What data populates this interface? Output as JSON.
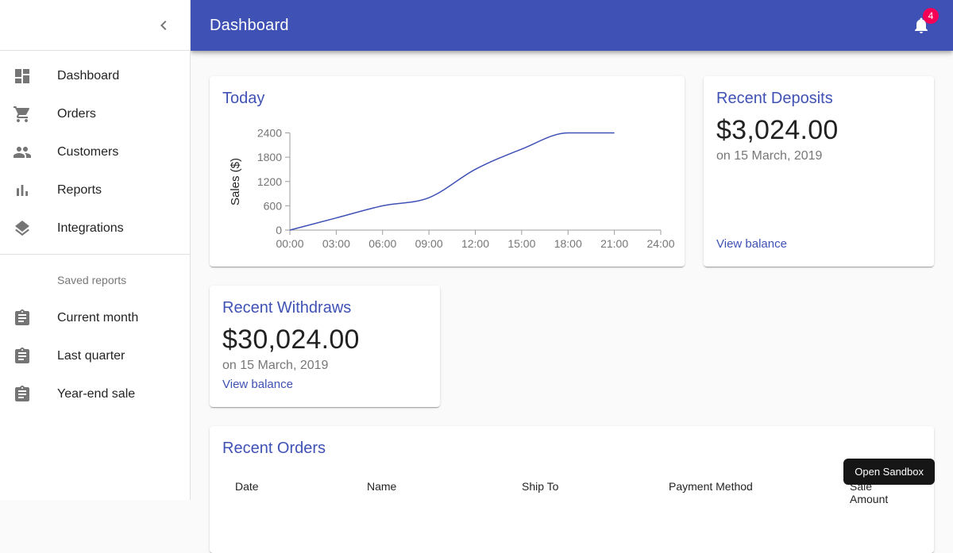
{
  "app_bar": {
    "title": "Dashboard",
    "notifications_badge": "4"
  },
  "sidebar": {
    "main_items": [
      {
        "label": "Dashboard",
        "icon": "dashboard-icon"
      },
      {
        "label": "Orders",
        "icon": "shopping-cart-icon"
      },
      {
        "label": "Customers",
        "icon": "people-icon"
      },
      {
        "label": "Reports",
        "icon": "bar-chart-icon"
      },
      {
        "label": "Integrations",
        "icon": "layers-icon"
      }
    ],
    "subheader": "Saved reports",
    "saved_items": [
      {
        "label": "Current month",
        "icon": "assignment-icon"
      },
      {
        "label": "Last quarter",
        "icon": "assignment-icon"
      },
      {
        "label": "Year-end sale",
        "icon": "assignment-icon"
      }
    ]
  },
  "today_card": {
    "title": "Today"
  },
  "deposits_card": {
    "title": "Recent Deposits",
    "amount": "$3,024.00",
    "date": "on 15 March, 2019",
    "link": "View balance"
  },
  "withdraws_card": {
    "title": "Recent Withdraws",
    "amount": "$30,024.00",
    "date": "on 15 March, 2019",
    "link": "View balance"
  },
  "orders_card": {
    "title": "Recent Orders",
    "columns": [
      "Date",
      "Name",
      "Ship To",
      "Payment Method",
      "Sale Amount"
    ]
  },
  "sandbox_button": {
    "label": "Open Sandbox"
  },
  "colors": {
    "primary": "#3f51b5",
    "badge": "#f50057",
    "background": "#fafafa",
    "axis": "#9e9e9e",
    "tick_text": "#757575"
  },
  "chart_data": {
    "type": "line",
    "title": "Today",
    "x": [
      "00:00",
      "03:00",
      "06:00",
      "09:00",
      "12:00",
      "15:00",
      "18:00",
      "21:00",
      "24:00"
    ],
    "series": [
      {
        "name": "Sales",
        "values": [
          0,
          300,
          600,
          800,
          1500,
          2000,
          2400,
          2400,
          null
        ]
      }
    ],
    "xlabel": "",
    "ylabel": "Sales ($)",
    "yticks": [
      0,
      600,
      1200,
      1800,
      2400
    ],
    "ylim": [
      0,
      2400
    ],
    "grid": false,
    "legend": false,
    "line_color": "#3f51b5",
    "curve": "monotone"
  }
}
